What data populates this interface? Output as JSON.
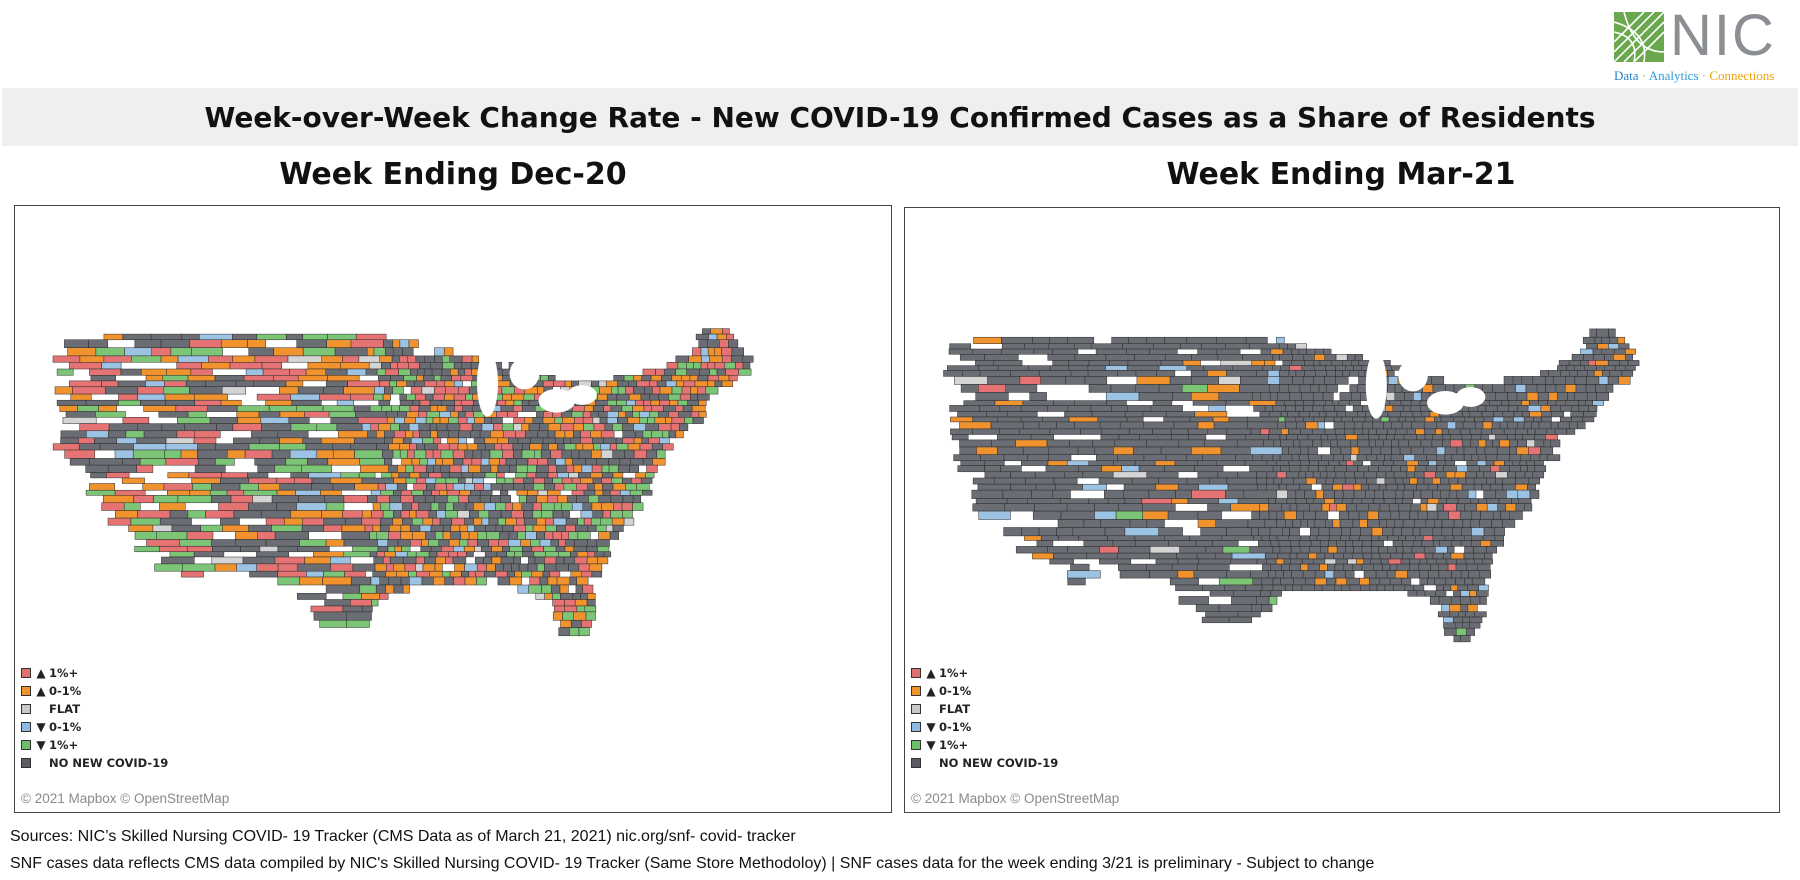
{
  "logo": {
    "name": "NIC",
    "tagline": [
      "Data",
      "Analytics",
      "Connections"
    ],
    "tagline_separator": "·"
  },
  "main_title": "Week-over-Week Change Rate - New COVID-19 Confirmed Cases as a Share of Residents",
  "panels": [
    {
      "title": "Week Ending Dec-20",
      "attribution": "© 2021 Mapbox © OpenStreetMap",
      "color_mix": {
        "gray": 0.35,
        "red": 0.22,
        "orange": 0.18,
        "green": 0.17,
        "blue": 0.06,
        "light": 0.02
      }
    },
    {
      "title": "Week Ending Mar-21",
      "attribution": "© 2021 Mapbox © OpenStreetMap",
      "color_mix": {
        "gray": 0.86,
        "orange": 0.08,
        "blue": 0.03,
        "red": 0.015,
        "green": 0.005,
        "light": 0.01
      }
    }
  ],
  "legend": [
    {
      "arrow": "▲",
      "label": "1%+",
      "color": "#e07070"
    },
    {
      "arrow": "▲",
      "label": "0-1%",
      "color": "#f0922e"
    },
    {
      "arrow": "",
      "label": "FLAT",
      "color": "#c9c9c9"
    },
    {
      "arrow": "▼",
      "label": "0-1%",
      "color": "#8fb9e0"
    },
    {
      "arrow": "▼",
      "label": "1%+",
      "color": "#6cbf6a"
    },
    {
      "arrow": "",
      "label": "NO NEW COVID-19",
      "color": "#5a5c63"
    }
  ],
  "colors": {
    "gray": "#6b6d74",
    "red": "#e57373",
    "orange": "#f0922e",
    "green": "#7cc576",
    "blue": "#9cc3e4",
    "light": "#d4d4d4",
    "title_band": "#efefef",
    "logo_green": "#6aa84f"
  },
  "footer": {
    "sources": "Sources: NIC’s Skilled Nursing COVID- 19 Tracker (CMS Data as of March 21, 2021) nic.org/snf- covid- tracker",
    "note": "SNF cases data reflects CMS data compiled by NIC's Skilled Nursing COVID- 19 Tracker (Same Store Methodoloy) | SNF cases data for the week ending 3/21 is preliminary - Subject to change"
  }
}
